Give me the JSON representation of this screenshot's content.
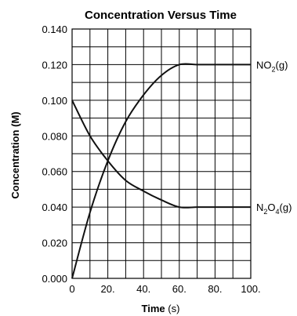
{
  "chart_data": {
    "type": "line",
    "title": "Concentration Versus Time",
    "xlabel_main": "Time",
    "xlabel_unit": " (s)",
    "ylabel": "Concentration (M)",
    "xlim": [
      0,
      100
    ],
    "ylim": [
      0,
      0.14
    ],
    "grid": true,
    "x_ticks": [
      0,
      20,
      40,
      60,
      80,
      100
    ],
    "x_tick_labels": [
      "0",
      "20.",
      "40.",
      "60.",
      "80.",
      "100."
    ],
    "y_ticks": [
      0,
      0.02,
      0.04,
      0.06,
      0.08,
      0.1,
      0.12,
      0.14
    ],
    "y_tick_labels": [
      "0.000",
      "0.020",
      "0.040",
      "0.060",
      "0.080",
      "0.100",
      "0.120",
      "0.140"
    ],
    "series": [
      {
        "name": "NO2(g)",
        "label_parts": [
          [
            "NO",
            "normal"
          ],
          [
            "2",
            "sub"
          ],
          [
            "(g)",
            "normal"
          ]
        ],
        "x": [
          0,
          10,
          20,
          30,
          40,
          50,
          60,
          70,
          80,
          90,
          100
        ],
        "values": [
          0,
          0.037,
          0.066,
          0.088,
          0.103,
          0.114,
          0.12,
          0.12,
          0.12,
          0.12,
          0.12
        ]
      },
      {
        "name": "N2O4(g)",
        "label_parts": [
          [
            "N",
            "normal"
          ],
          [
            "2",
            "sub"
          ],
          [
            "O",
            "normal"
          ],
          [
            "4",
            "sub"
          ],
          [
            "(g)",
            "normal"
          ]
        ],
        "x": [
          0,
          10,
          20,
          30,
          40,
          50,
          60,
          70,
          80,
          90,
          100
        ],
        "values": [
          0.1,
          0.08,
          0.066,
          0.055,
          0.049,
          0.044,
          0.04,
          0.04,
          0.04,
          0.04,
          0.04
        ]
      }
    ]
  }
}
